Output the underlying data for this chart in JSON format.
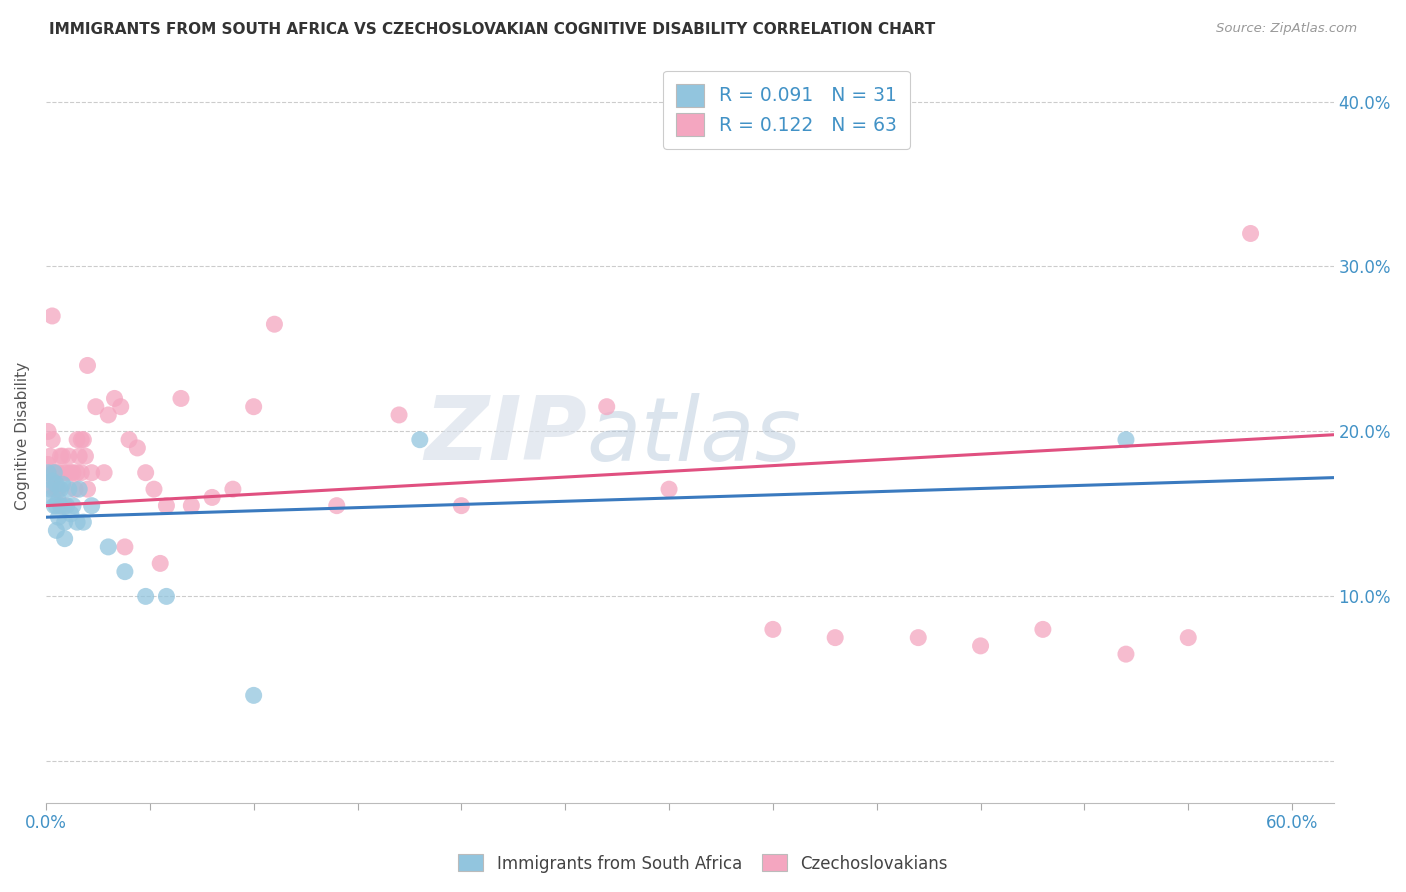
{
  "title": "IMMIGRANTS FROM SOUTH AFRICA VS CZECHOSLOVAKIAN COGNITIVE DISABILITY CORRELATION CHART",
  "source": "Source: ZipAtlas.com",
  "ylabel": "Cognitive Disability",
  "legend1_label": "R = 0.091   N = 31",
  "legend2_label": "R = 0.122   N = 63",
  "legend_bottom_label1": "Immigrants from South Africa",
  "legend_bottom_label2": "Czechoslovakians",
  "color_blue": "#92c5de",
  "color_pink": "#f4a6c0",
  "trend_blue": "#3a7abf",
  "trend_pink": "#e05080",
  "blue_scatter_x": [
    0.001,
    0.002,
    0.003,
    0.003,
    0.004,
    0.004,
    0.005,
    0.005,
    0.005,
    0.006,
    0.006,
    0.007,
    0.007,
    0.008,
    0.009,
    0.009,
    0.01,
    0.011,
    0.012,
    0.013,
    0.015,
    0.016,
    0.018,
    0.022,
    0.03,
    0.038,
    0.048,
    0.058,
    0.1,
    0.18,
    0.52
  ],
  "blue_scatter_y": [
    0.175,
    0.165,
    0.16,
    0.17,
    0.155,
    0.175,
    0.168,
    0.155,
    0.14,
    0.158,
    0.148,
    0.155,
    0.165,
    0.168,
    0.145,
    0.135,
    0.155,
    0.165,
    0.15,
    0.155,
    0.145,
    0.165,
    0.145,
    0.155,
    0.13,
    0.115,
    0.1,
    0.1,
    0.04,
    0.195,
    0.195
  ],
  "pink_scatter_x": [
    0.001,
    0.002,
    0.003,
    0.003,
    0.004,
    0.004,
    0.005,
    0.005,
    0.006,
    0.006,
    0.007,
    0.007,
    0.008,
    0.009,
    0.009,
    0.01,
    0.011,
    0.012,
    0.013,
    0.014,
    0.015,
    0.015,
    0.016,
    0.017,
    0.017,
    0.018,
    0.019,
    0.02,
    0.022,
    0.024,
    0.028,
    0.03,
    0.033,
    0.036,
    0.04,
    0.044,
    0.048,
    0.052,
    0.058,
    0.065,
    0.07,
    0.08,
    0.09,
    0.1,
    0.11,
    0.14,
    0.17,
    0.2,
    0.27,
    0.3,
    0.35,
    0.38,
    0.42,
    0.45,
    0.48,
    0.52,
    0.55,
    0.58,
    0.001,
    0.003,
    0.02,
    0.038,
    0.055
  ],
  "pink_scatter_y": [
    0.18,
    0.185,
    0.175,
    0.195,
    0.17,
    0.165,
    0.175,
    0.165,
    0.175,
    0.165,
    0.155,
    0.185,
    0.185,
    0.175,
    0.155,
    0.175,
    0.185,
    0.175,
    0.175,
    0.165,
    0.195,
    0.175,
    0.185,
    0.195,
    0.175,
    0.195,
    0.185,
    0.165,
    0.175,
    0.215,
    0.175,
    0.21,
    0.22,
    0.215,
    0.195,
    0.19,
    0.175,
    0.165,
    0.155,
    0.22,
    0.155,
    0.16,
    0.165,
    0.215,
    0.265,
    0.155,
    0.21,
    0.155,
    0.215,
    0.165,
    0.08,
    0.075,
    0.075,
    0.07,
    0.08,
    0.065,
    0.075,
    0.32,
    0.2,
    0.27,
    0.24,
    0.13,
    0.12
  ],
  "xlim": [
    0.0,
    0.62
  ],
  "ylim": [
    -0.025,
    0.42
  ],
  "watermark_zip": "ZIP",
  "watermark_atlas": "atlas",
  "background_color": "#ffffff"
}
